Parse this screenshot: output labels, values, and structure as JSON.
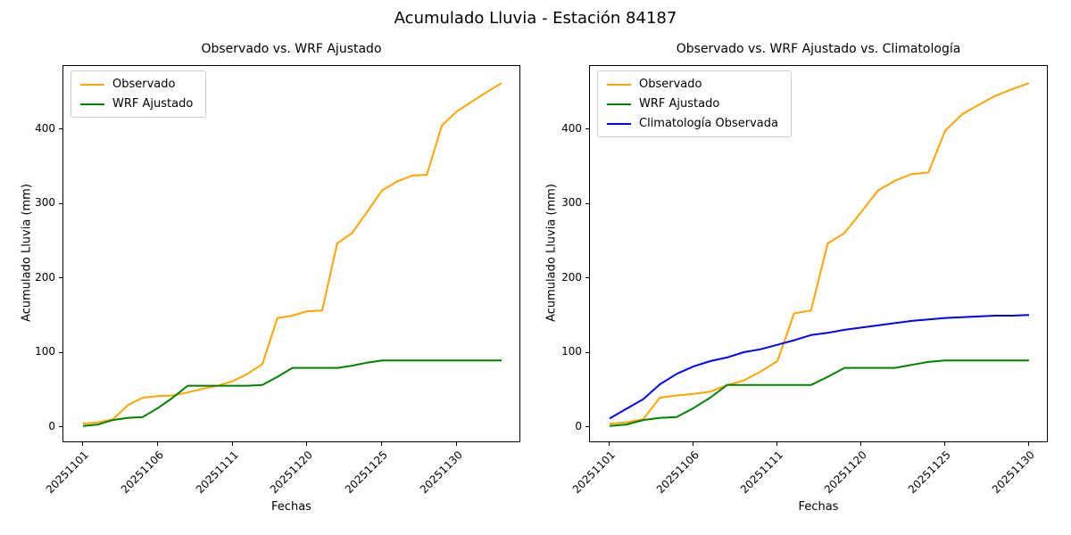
{
  "figure_title": "Acumulado Lluvia - Estación 84187",
  "colors": {
    "observado": "#FFA500",
    "wrf_ajustado": "#008000",
    "climatologia": "#0000FF",
    "axes_frame": "#000000",
    "legend_border": "#cccccc"
  },
  "chart_data": [
    {
      "type": "line",
      "title": "Observado vs. WRF Ajustado",
      "xlabel": "Fechas",
      "ylabel": "Acumulado Lluvia (mm)",
      "legend_position": "upper left",
      "grid": false,
      "ylim": [
        -21,
        485
      ],
      "yticks": [
        0,
        100,
        200,
        300,
        400
      ],
      "tick_indices": [
        0,
        5,
        10,
        15,
        20,
        25
      ],
      "categories": [
        "20251101",
        "20251102",
        "20251103",
        "20251104",
        "20251105",
        "20251106",
        "20251107",
        "20251108",
        "20251109",
        "20251110",
        "20251111",
        "20251116",
        "20251117",
        "20251118",
        "20251119",
        "20251120",
        "20251121",
        "20251122",
        "20251123",
        "20251124",
        "20251125",
        "20251126",
        "20251127",
        "20251128",
        "20251129",
        "20251130",
        "20251201",
        "20251202",
        "20251203"
      ],
      "series": [
        {
          "name": "Observado",
          "color": "#FFA500",
          "values": [
            5,
            7,
            11,
            30,
            40,
            42,
            43,
            47,
            52,
            56,
            62,
            72,
            85,
            147,
            150,
            156,
            157,
            247,
            261,
            289,
            318,
            330,
            338,
            339,
            405,
            424,
            437,
            450,
            462
          ]
        },
        {
          "name": "WRF Ajustado",
          "color": "#008000",
          "values": [
            2,
            4,
            10,
            13,
            14,
            26,
            40,
            56,
            56,
            56,
            56,
            56,
            57,
            68,
            80,
            80,
            80,
            80,
            83,
            87,
            90,
            90,
            90,
            90,
            90,
            90,
            90,
            90,
            90
          ]
        }
      ]
    },
    {
      "type": "line",
      "title": "Observado vs. WRF Ajustado vs. Climatología",
      "xlabel": "Fechas",
      "ylabel": "Acumulado Lluvia (mm)",
      "legend_position": "upper left",
      "grid": false,
      "ylim": [
        -21,
        485
      ],
      "yticks": [
        0,
        100,
        200,
        300,
        400
      ],
      "tick_indices": [
        0,
        5,
        10,
        15,
        20,
        25
      ],
      "categories": [
        "20251101",
        "20251102",
        "20251103",
        "20251104",
        "20251105",
        "20251106",
        "20251107",
        "20251108",
        "20251109",
        "20251110",
        "20251111",
        "20251116",
        "20251117",
        "20251118",
        "20251119",
        "20251120",
        "20251121",
        "20251122",
        "20251123",
        "20251124",
        "20251125",
        "20251126",
        "20251127",
        "20251128",
        "20251129",
        "20251130"
      ],
      "series": [
        {
          "name": "Observado",
          "color": "#FFA500",
          "values": [
            5,
            7,
            11,
            40,
            43,
            45,
            48,
            57,
            63,
            75,
            89,
            153,
            157,
            247,
            261,
            289,
            318,
            331,
            340,
            342,
            398,
            420,
            433,
            445,
            454,
            462
          ]
        },
        {
          "name": "WRF Ajustado",
          "color": "#008000",
          "values": [
            2,
            4,
            10,
            13,
            14,
            26,
            40,
            57,
            57,
            57,
            57,
            57,
            57,
            68,
            80,
            80,
            80,
            80,
            84,
            88,
            90,
            90,
            90,
            90,
            90,
            90
          ]
        },
        {
          "name": "Climatología Observada",
          "color": "#0000FF",
          "values": [
            12,
            25,
            38,
            58,
            72,
            82,
            89,
            94,
            101,
            105,
            111,
            117,
            124,
            127,
            131,
            134,
            137,
            140,
            143,
            145,
            147,
            148,
            149,
            150,
            150,
            151
          ]
        }
      ]
    }
  ]
}
